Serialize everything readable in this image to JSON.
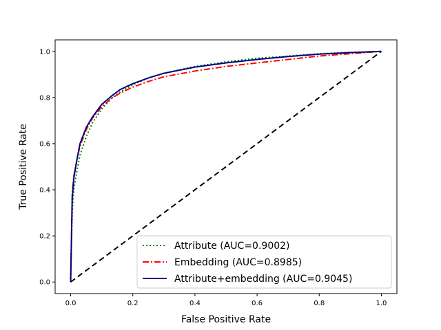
{
  "chart_data": {
    "type": "line",
    "title": "",
    "xlabel": "False Positive Rate",
    "ylabel": "True Positive Rate",
    "xlim": [
      -0.05,
      1.05
    ],
    "ylim": [
      -0.05,
      1.05
    ],
    "x_ticks": [
      "0.0",
      "0.2",
      "0.4",
      "0.6",
      "0.8",
      "1.0"
    ],
    "y_ticks": [
      "0.0",
      "0.2",
      "0.4",
      "0.6",
      "0.8",
      "1.0"
    ],
    "grid": false,
    "legend_position": "lower-right",
    "series": [
      {
        "name": "Attribute (AUC=0.9002)",
        "color": "#008000",
        "style": "dotted",
        "x": [
          0.0,
          0.005,
          0.01,
          0.02,
          0.03,
          0.05,
          0.07,
          0.1,
          0.13,
          0.16,
          0.2,
          0.25,
          0.3,
          0.4,
          0.5,
          0.6,
          0.7,
          0.8,
          0.9,
          1.0
        ],
        "y": [
          0.0,
          0.3,
          0.4,
          0.48,
          0.55,
          0.63,
          0.69,
          0.75,
          0.795,
          0.825,
          0.855,
          0.885,
          0.905,
          0.935,
          0.955,
          0.97,
          0.98,
          0.99,
          0.996,
          1.0
        ]
      },
      {
        "name": "Embedding (AUC=0.8985)",
        "color": "#ff0000",
        "style": "dashdot",
        "x": [
          0.0,
          0.005,
          0.01,
          0.02,
          0.03,
          0.05,
          0.07,
          0.1,
          0.13,
          0.16,
          0.2,
          0.25,
          0.3,
          0.4,
          0.5,
          0.6,
          0.7,
          0.8,
          0.9,
          1.0
        ],
        "y": [
          0.0,
          0.38,
          0.46,
          0.53,
          0.59,
          0.66,
          0.71,
          0.76,
          0.795,
          0.82,
          0.845,
          0.87,
          0.89,
          0.915,
          0.935,
          0.95,
          0.965,
          0.98,
          0.99,
          1.0
        ]
      },
      {
        "name": "Attribute+embedding (AUC=0.9045)",
        "color": "#000080",
        "style": "solid",
        "x": [
          0.0,
          0.005,
          0.01,
          0.02,
          0.03,
          0.05,
          0.07,
          0.1,
          0.13,
          0.16,
          0.2,
          0.25,
          0.3,
          0.4,
          0.5,
          0.6,
          0.7,
          0.8,
          0.9,
          1.0
        ],
        "y": [
          0.0,
          0.36,
          0.45,
          0.53,
          0.6,
          0.67,
          0.715,
          0.77,
          0.805,
          0.835,
          0.86,
          0.885,
          0.905,
          0.932,
          0.95,
          0.965,
          0.978,
          0.988,
          0.995,
          1.0
        ]
      }
    ],
    "reference_line": {
      "color": "#000000",
      "style": "dashed",
      "x": [
        0.0,
        1.0
      ],
      "y": [
        0.0,
        1.0
      ]
    }
  }
}
